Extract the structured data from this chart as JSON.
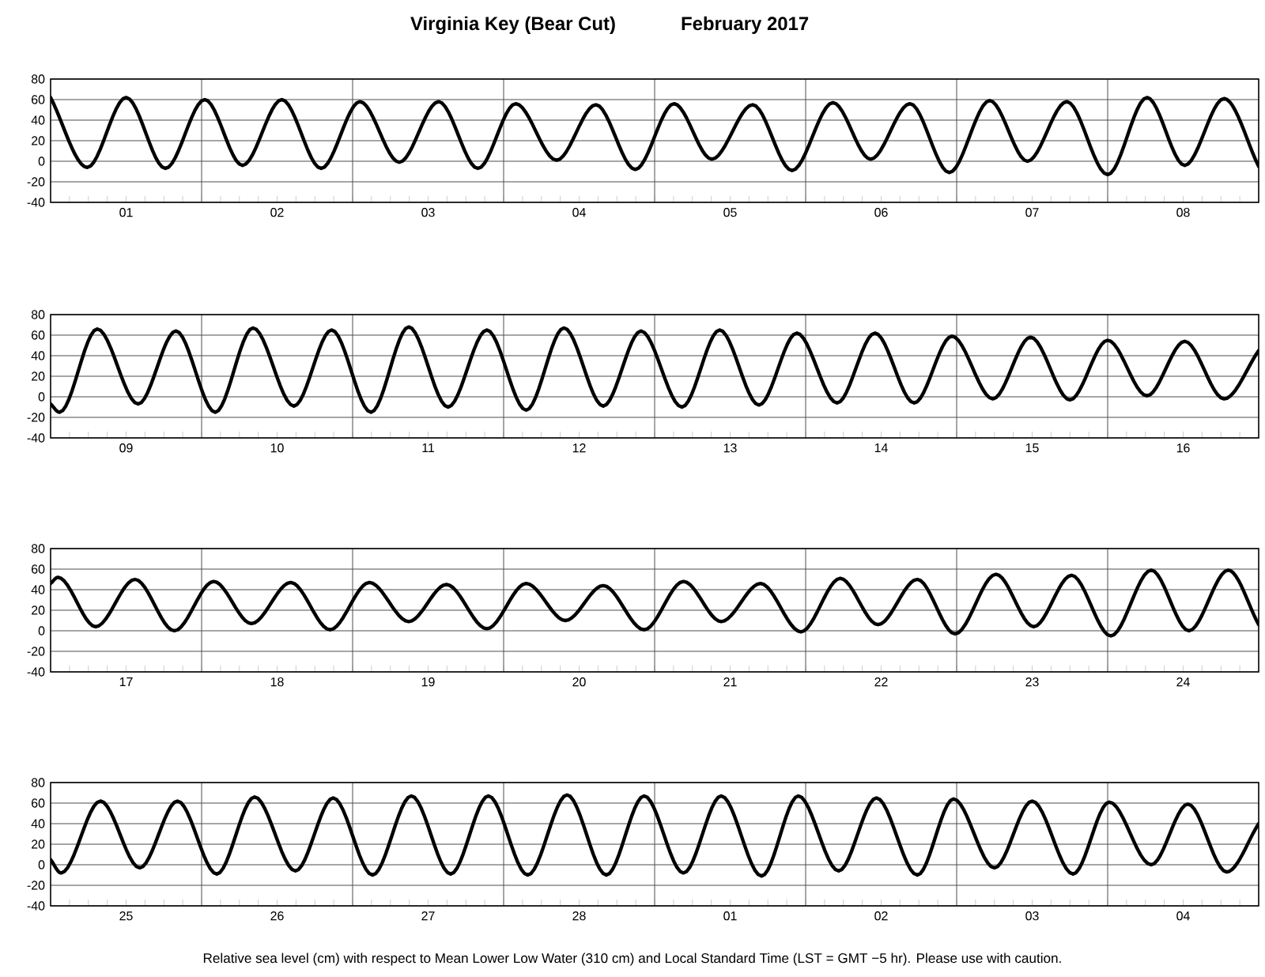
{
  "chart_data": [
    {
      "type": "line",
      "title": "Virginia Key (Bear Cut)",
      "subtitle": "February   2017",
      "color": "#000000",
      "line_style": "solid",
      "grid": true,
      "x": [
        "2017-02-01T00:00",
        "2017-02-01T05:50",
        "2017-02-01T12:00",
        "2017-02-01T18:15",
        "2017-02-02T00:30",
        "2017-02-02T06:30",
        "2017-02-02T12:45",
        "2017-02-02T19:00",
        "2017-02-03T01:10",
        "2017-02-03T07:25",
        "2017-02-03T13:40",
        "2017-02-03T19:55",
        "2017-02-04T01:55",
        "2017-02-04T08:25",
        "2017-02-04T14:40",
        "2017-02-04T20:55",
        "2017-02-05T03:05",
        "2017-02-05T09:05",
        "2017-02-05T15:35",
        "2017-02-05T21:50",
        "2017-02-06T04:20",
        "2017-02-06T10:20",
        "2017-02-06T16:35",
        "2017-02-06T22:50",
        "2017-02-07T05:15",
        "2017-02-07T11:15",
        "2017-02-07T17:30",
        "2017-02-08T00:00",
        "2017-02-08T06:15",
        "2017-02-08T12:15",
        "2017-02-08T18:30",
        "2017-02-09T00:00"
      ],
      "values": [
        62,
        -6,
        62,
        -7,
        60,
        -4,
        60,
        -7,
        58,
        -1,
        58,
        -7,
        56,
        1,
        55,
        -8,
        56,
        2,
        55,
        -9,
        57,
        2,
        56,
        -11,
        59,
        0,
        58,
        -13,
        62,
        -4,
        61,
        -5
      ],
      "xlim": [
        "2017-02-01T00:00",
        "2017-02-09T00:00"
      ],
      "ylim": [
        -40,
        80
      ],
      "yticks": [
        -40,
        -20,
        0,
        20,
        40,
        60,
        80
      ],
      "xticks": [
        {
          "value": "2017-02-01T12:00",
          "label": "01"
        },
        {
          "value": "2017-02-02T12:00",
          "label": "02"
        },
        {
          "value": "2017-02-03T12:00",
          "label": "03"
        },
        {
          "value": "2017-02-04T12:00",
          "label": "04"
        },
        {
          "value": "2017-02-05T12:00",
          "label": "05"
        },
        {
          "value": "2017-02-06T12:00",
          "label": "06"
        },
        {
          "value": "2017-02-07T12:00",
          "label": "07"
        },
        {
          "value": "2017-02-08T12:00",
          "label": "08"
        },
        {
          "value": "2017-02-02T00:00",
          "label": null
        },
        {
          "value": "2017-02-03T00:00",
          "label": null
        },
        {
          "value": "2017-02-04T00:00",
          "label": null
        },
        {
          "value": "2017-02-05T00:00",
          "label": null
        },
        {
          "value": "2017-02-06T00:00",
          "label": null
        },
        {
          "value": "2017-02-07T00:00",
          "label": null
        },
        {
          "value": "2017-02-08T00:00",
          "label": null
        }
      ]
    },
    {
      "type": "line",
      "color": "#000000",
      "line_style": "solid",
      "grid": true,
      "x": [
        "2017-02-09T00:00",
        "2017-02-09T01:25",
        "2017-02-09T07:25",
        "2017-02-09T13:55",
        "2017-02-09T19:55",
        "2017-02-10T02:10",
        "2017-02-10T08:10",
        "2017-02-10T14:40",
        "2017-02-10T20:40",
        "2017-02-11T02:55",
        "2017-02-11T08:55",
        "2017-02-11T15:10",
        "2017-02-11T21:20",
        "2017-02-12T03:35",
        "2017-02-12T09:35",
        "2017-02-12T15:50",
        "2017-02-12T21:50",
        "2017-02-13T04:20",
        "2017-02-13T10:20",
        "2017-02-13T16:35",
        "2017-02-13T22:35",
        "2017-02-14T05:00",
        "2017-02-14T11:00",
        "2017-02-14T17:15",
        "2017-02-14T23:15",
        "2017-02-15T05:45",
        "2017-02-15T11:45",
        "2017-02-15T18:00",
        "2017-02-16T00:00",
        "2017-02-16T06:15",
        "2017-02-16T12:15",
        "2017-02-16T18:30",
        "2017-02-17T00:00"
      ],
      "values": [
        -7,
        -15,
        66,
        -7,
        64,
        -15,
        67,
        -9,
        65,
        -15,
        68,
        -10,
        65,
        -13,
        67,
        -9,
        64,
        -10,
        65,
        -8,
        62,
        -6,
        62,
        -6,
        59,
        -2,
        58,
        -3,
        55,
        1,
        54,
        -2,
        45
      ],
      "xlim": [
        "2017-02-09T00:00",
        "2017-02-17T00:00"
      ],
      "ylim": [
        -40,
        80
      ],
      "yticks": [
        -40,
        -20,
        0,
        20,
        40,
        60,
        80
      ],
      "xticks": [
        {
          "value": "2017-02-09T12:00",
          "label": "09"
        },
        {
          "value": "2017-02-10T12:00",
          "label": "10"
        },
        {
          "value": "2017-02-11T12:00",
          "label": "11"
        },
        {
          "value": "2017-02-12T12:00",
          "label": "12"
        },
        {
          "value": "2017-02-13T12:00",
          "label": "13"
        },
        {
          "value": "2017-02-14T12:00",
          "label": "14"
        },
        {
          "value": "2017-02-15T12:00",
          "label": "15"
        },
        {
          "value": "2017-02-16T12:00",
          "label": "16"
        },
        {
          "value": "2017-02-10T00:00",
          "label": null
        },
        {
          "value": "2017-02-11T00:00",
          "label": null
        },
        {
          "value": "2017-02-12T00:00",
          "label": null
        },
        {
          "value": "2017-02-13T00:00",
          "label": null
        },
        {
          "value": "2017-02-14T00:00",
          "label": null
        },
        {
          "value": "2017-02-15T00:00",
          "label": null
        },
        {
          "value": "2017-02-16T00:00",
          "label": null
        }
      ]
    },
    {
      "type": "line",
      "color": "#000000",
      "line_style": "solid",
      "grid": true,
      "x": [
        "2017-02-17T00:00",
        "2017-02-17T01:10",
        "2017-02-17T07:10",
        "2017-02-17T13:25",
        "2017-02-17T19:40",
        "2017-02-18T01:55",
        "2017-02-18T07:55",
        "2017-02-18T14:10",
        "2017-02-18T20:25",
        "2017-02-19T02:40",
        "2017-02-19T08:55",
        "2017-02-19T14:55",
        "2017-02-19T21:20",
        "2017-02-20T03:35",
        "2017-02-20T09:50",
        "2017-02-20T15:50",
        "2017-02-20T22:20",
        "2017-02-21T04:35",
        "2017-02-21T10:35",
        "2017-02-21T16:50",
        "2017-02-21T23:15",
        "2017-02-22T05:30",
        "2017-02-22T11:30",
        "2017-02-22T17:45",
        "2017-02-22T23:45",
        "2017-02-23T06:15",
        "2017-02-23T12:15",
        "2017-02-23T18:15",
        "2017-02-24T00:30",
        "2017-02-24T06:55",
        "2017-02-24T12:55",
        "2017-02-24T19:10",
        "2017-02-25T00:00"
      ],
      "values": [
        46,
        52,
        4,
        50,
        0,
        48,
        7,
        47,
        1,
        47,
        9,
        45,
        2,
        46,
        10,
        44,
        1,
        48,
        9,
        46,
        -1,
        51,
        6,
        50,
        -3,
        55,
        4,
        54,
        -5,
        59,
        0,
        59,
        6
      ],
      "xlim": [
        "2017-02-17T00:00",
        "2017-02-25T00:00"
      ],
      "ylim": [
        -40,
        80
      ],
      "yticks": [
        -40,
        -20,
        0,
        20,
        40,
        60,
        80
      ],
      "xticks": [
        {
          "value": "2017-02-17T12:00",
          "label": "17"
        },
        {
          "value": "2017-02-18T12:00",
          "label": "18"
        },
        {
          "value": "2017-02-19T12:00",
          "label": "19"
        },
        {
          "value": "2017-02-20T12:00",
          "label": "20"
        },
        {
          "value": "2017-02-21T12:00",
          "label": "21"
        },
        {
          "value": "2017-02-22T12:00",
          "label": "22"
        },
        {
          "value": "2017-02-23T12:00",
          "label": "23"
        },
        {
          "value": "2017-02-24T12:00",
          "label": "24"
        },
        {
          "value": "2017-02-18T00:00",
          "label": null
        },
        {
          "value": "2017-02-19T00:00",
          "label": null
        },
        {
          "value": "2017-02-20T00:00",
          "label": null
        },
        {
          "value": "2017-02-21T00:00",
          "label": null
        },
        {
          "value": "2017-02-22T00:00",
          "label": null
        },
        {
          "value": "2017-02-23T00:00",
          "label": null
        },
        {
          "value": "2017-02-24T00:00",
          "label": null
        }
      ]
    },
    {
      "type": "line",
      "color": "#000000",
      "line_style": "solid",
      "grid": true,
      "x": [
        "2017-02-25T00:00",
        "2017-02-25T01:40",
        "2017-02-25T07:55",
        "2017-02-25T14:10",
        "2017-02-25T20:10",
        "2017-02-26T02:25",
        "2017-02-26T08:25",
        "2017-02-26T14:55",
        "2017-02-26T20:55",
        "2017-02-27T03:10",
        "2017-02-27T09:20",
        "2017-02-27T15:35",
        "2017-02-27T21:35",
        "2017-02-28T03:50",
        "2017-02-28T10:05",
        "2017-02-28T16:20",
        "2017-02-28T22:20",
        "2017-03-01T04:35",
        "2017-03-01T10:35",
        "2017-03-01T17:00",
        "2017-03-01T22:50",
        "2017-03-02T05:15",
        "2017-03-02T11:15",
        "2017-03-02T17:45",
        "2017-03-02T23:30",
        "2017-03-03T06:00",
        "2017-03-03T12:00",
        "2017-03-03T18:30",
        "2017-03-04T00:15",
        "2017-03-04T06:55",
        "2017-03-04T12:45",
        "2017-03-04T18:55",
        "2017-03-05T00:00"
      ],
      "values": [
        5,
        -8,
        62,
        -3,
        62,
        -9,
        66,
        -6,
        65,
        -10,
        67,
        -9,
        67,
        -10,
        68,
        -10,
        67,
        -8,
        67,
        -11,
        67,
        -6,
        65,
        -10,
        64,
        -3,
        62,
        -9,
        61,
        0,
        59,
        -7,
        40
      ],
      "xlim": [
        "2017-02-25T00:00",
        "2017-03-05T00:00"
      ],
      "ylim": [
        -40,
        80
      ],
      "yticks": [
        -40,
        -20,
        0,
        20,
        40,
        60,
        80
      ],
      "xticks": [
        {
          "value": "2017-02-25T12:00",
          "label": "25"
        },
        {
          "value": "2017-02-26T12:00",
          "label": "26"
        },
        {
          "value": "2017-02-27T12:00",
          "label": "27"
        },
        {
          "value": "2017-02-28T12:00",
          "label": "28"
        },
        {
          "value": "2017-03-01T12:00",
          "label": "01"
        },
        {
          "value": "2017-03-02T12:00",
          "label": "02"
        },
        {
          "value": "2017-03-03T12:00",
          "label": "03"
        },
        {
          "value": "2017-03-04T12:00",
          "label": "04"
        },
        {
          "value": "2017-02-26T00:00",
          "label": null
        },
        {
          "value": "2017-02-27T00:00",
          "label": null
        },
        {
          "value": "2017-02-28T00:00",
          "label": null
        },
        {
          "value": "2017-03-01T00:00",
          "label": null
        },
        {
          "value": "2017-03-02T00:00",
          "label": null
        },
        {
          "value": "2017-03-03T00:00",
          "label": null
        },
        {
          "value": "2017-03-04T00:00",
          "label": null
        }
      ],
      "annotations": [
        "Relative sea level (cm) with respect to Mean Lower Low Water (310 cm) and Local Standard Time (LST = GMT −5 hr). Please use with caution."
      ]
    }
  ]
}
